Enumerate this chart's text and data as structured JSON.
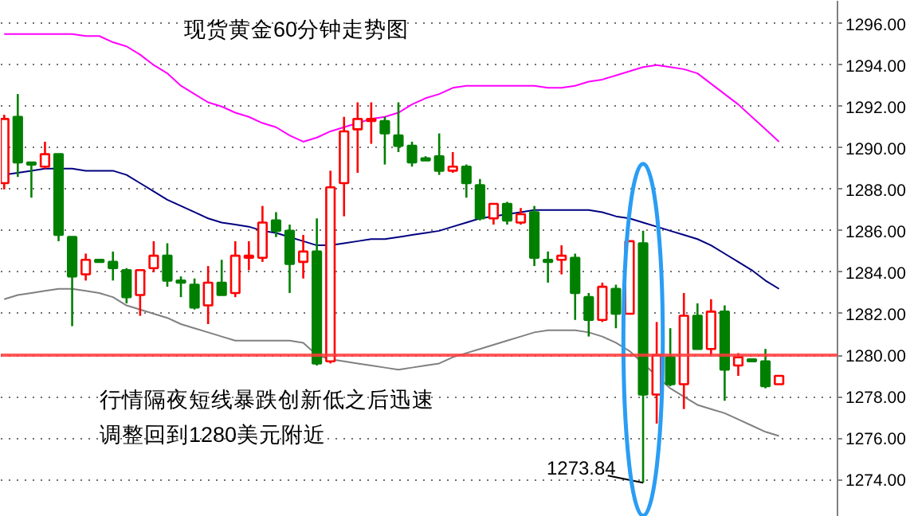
{
  "chart_data": {
    "type": "candlestick",
    "title": "现货黄金60分钟走势图",
    "annotations": [
      "行情隔夜短线暴跌创新低之后迅速",
      "调整回到1280美元附近",
      "1273.84"
    ],
    "categories": [
      null,
      null,
      null,
      null,
      null,
      null,
      null,
      null,
      null,
      null,
      null,
      null,
      null,
      null,
      null,
      null,
      null,
      null,
      null,
      null,
      null,
      null,
      null,
      null,
      null,
      null,
      null,
      null,
      null,
      null,
      null,
      null,
      null,
      null,
      null,
      null,
      null,
      null,
      null,
      null,
      null,
      null,
      null,
      null,
      null,
      null,
      null,
      null,
      null,
      null,
      null,
      null,
      null,
      null,
      null,
      null,
      null,
      null
    ],
    "ohlc": [
      [
        1288.3,
        1291.6,
        1288.0,
        1291.4
      ],
      [
        1291.5,
        1292.6,
        1288.6,
        1289.3
      ],
      [
        1289.3,
        1289.3,
        1287.6,
        1289.2
      ],
      [
        1289.1,
        1290.3,
        1289.0,
        1289.7
      ],
      [
        1289.7,
        1289.7,
        1285.5,
        1285.8
      ],
      [
        1285.7,
        1285.7,
        1281.4,
        1283.8
      ],
      [
        1283.9,
        1284.9,
        1283.6,
        1284.6
      ],
      [
        1284.6,
        1284.6,
        1284.5,
        1284.5
      ],
      [
        1284.5,
        1285.0,
        1283.6,
        1284.2
      ],
      [
        1284.1,
        1284.2,
        1282.5,
        1282.8
      ],
      [
        1282.9,
        1284.1,
        1281.9,
        1284.1
      ],
      [
        1284.2,
        1285.5,
        1284.0,
        1284.8
      ],
      [
        1284.8,
        1285.4,
        1283.3,
        1283.6
      ],
      [
        1283.6,
        1283.8,
        1282.8,
        1283.5
      ],
      [
        1283.4,
        1283.7,
        1282.2,
        1282.3
      ],
      [
        1282.4,
        1284.3,
        1281.5,
        1283.5
      ],
      [
        1283.5,
        1284.6,
        1282.9,
        1282.9
      ],
      [
        1283.0,
        1285.5,
        1282.8,
        1284.8
      ],
      [
        1284.7,
        1285.5,
        1284.1,
        1284.8
      ],
      [
        1284.7,
        1287.2,
        1284.5,
        1286.4
      ],
      [
        1286.5,
        1286.9,
        1285.7,
        1286.0
      ],
      [
        1286.0,
        1286.3,
        1283.0,
        1284.4
      ],
      [
        1284.5,
        1285.8,
        1283.7,
        1285.0
      ],
      [
        1285.0,
        1286.6,
        1279.5,
        1279.6
      ],
      [
        1279.7,
        1288.9,
        1279.6,
        1288.1
      ],
      [
        1288.3,
        1291.5,
        1286.7,
        1290.8
      ],
      [
        1290.9,
        1292.2,
        1288.8,
        1291.4
      ],
      [
        1291.3,
        1292.2,
        1290.2,
        1291.4
      ],
      [
        1291.3,
        1291.5,
        1289.2,
        1290.7
      ],
      [
        1290.6,
        1292.2,
        1289.8,
        1290.1
      ],
      [
        1290.1,
        1290.3,
        1289.1,
        1289.3
      ],
      [
        1289.5,
        1289.6,
        1289.4,
        1289.4
      ],
      [
        1289.6,
        1290.7,
        1288.7,
        1288.9
      ],
      [
        1288.9,
        1289.8,
        1288.8,
        1289.1
      ],
      [
        1289.1,
        1289.2,
        1287.6,
        1288.3
      ],
      [
        1288.2,
        1288.5,
        1286.5,
        1286.6
      ],
      [
        1286.6,
        1287.3,
        1286.3,
        1287.3
      ],
      [
        1287.3,
        1287.4,
        1286.3,
        1286.5
      ],
      [
        1286.4,
        1287.1,
        1286.3,
        1286.8
      ],
      [
        1286.9,
        1287.2,
        1284.3,
        1284.7
      ],
      [
        1284.6,
        1285.0,
        1283.5,
        1284.5
      ],
      [
        1284.6,
        1285.3,
        1283.9,
        1284.8
      ],
      [
        1284.7,
        1284.9,
        1281.7,
        1283.0
      ],
      [
        1282.8,
        1283.0,
        1280.9,
        1281.7
      ],
      [
        1281.7,
        1283.5,
        1281.6,
        1283.3
      ],
      [
        1283.2,
        1283.4,
        1281.3,
        1282.0
      ],
      [
        1282.0,
        1285.5,
        1282.0,
        1285.5
      ],
      [
        1285.4,
        1286.0,
        1273.84,
        1278.1
      ],
      [
        1278.1,
        1281.6,
        1276.7,
        1280.0
      ],
      [
        1279.9,
        1281.3,
        1278.5,
        1278.6
      ],
      [
        1278.6,
        1283.0,
        1277.4,
        1281.9
      ],
      [
        1281.9,
        1282.5,
        1280.3,
        1280.3
      ],
      [
        1280.3,
        1282.7,
        1280.0,
        1282.1
      ],
      [
        1282.1,
        1282.4,
        1277.8,
        1279.3
      ],
      [
        1279.5,
        1280.1,
        1279.0,
        1279.9
      ],
      [
        1279.8,
        1279.8,
        1279.7,
        1279.7
      ],
      [
        1279.7,
        1280.3,
        1278.4,
        1278.5
      ],
      [
        1278.6,
        1279.0,
        1278.6,
        1279.0
      ]
    ],
    "colors": [
      "#ff0000",
      "#008000",
      "#008000",
      "#ff0000",
      "#008000",
      "#008000",
      "#ff0000",
      "#008000",
      "#008000",
      "#008000",
      "#ff0000",
      "#ff0000",
      "#008000",
      "#008000",
      "#008000",
      "#ff0000",
      "#008000",
      "#ff0000",
      "#ff0000",
      "#ff0000",
      "#008000",
      "#008000",
      "#ff0000",
      "#008000",
      "#ff0000",
      "#ff0000",
      "#ff0000",
      "#ff0000",
      "#008000",
      "#008000",
      "#008000",
      "#008000",
      "#008000",
      "#ff0000",
      "#008000",
      "#008000",
      "#ff0000",
      "#008000",
      "#ff0000",
      "#008000",
      "#008000",
      "#ff0000",
      "#008000",
      "#008000",
      "#ff0000",
      "#008000",
      "#ff0000",
      "#008000",
      "#ff0000",
      "#008000",
      "#ff0000",
      "#008000",
      "#ff0000",
      "#008000",
      "#ff0000",
      "#008000",
      "#008000",
      "#ff0000"
    ],
    "series": [
      {
        "type": "line",
        "color": "#ff00ff",
        "values": [
          1295.5,
          1295.5,
          1295.5,
          1295.5,
          1295.5,
          1295.5,
          1295.4,
          1295.4,
          1295.1,
          1294.9,
          1294.5,
          1294.0,
          1293.6,
          1293.0,
          1292.6,
          1292.2,
          1292.0,
          1291.7,
          1291.5,
          1291.2,
          1291.0,
          1290.6,
          1290.3,
          1290.5,
          1290.8,
          1291.0,
          1291.2,
          1291.4,
          1291.5,
          1291.7,
          1292.1,
          1292.4,
          1292.6,
          1292.9,
          1293.0,
          1293.0,
          1293.0,
          1293.0,
          1293.0,
          1293.0,
          1292.9,
          1292.9,
          1293.0,
          1293.2,
          1293.3,
          1293.5,
          1293.7,
          1293.9,
          1294.0,
          1293.9,
          1293.8,
          1293.6,
          1293.1,
          1292.6,
          1292.1,
          1291.5,
          1290.9,
          1290.3
        ]
      },
      {
        "type": "line",
        "color": "#000080",
        "values": [
          1288.7,
          1288.8,
          1288.9,
          1289.0,
          1289.0,
          1289.0,
          1288.9,
          1288.9,
          1288.9,
          1288.7,
          1288.3,
          1287.9,
          1287.5,
          1287.2,
          1286.9,
          1286.6,
          1286.4,
          1286.3,
          1286.2,
          1286.0,
          1285.9,
          1285.7,
          1285.5,
          1285.3,
          1285.3,
          1285.4,
          1285.5,
          1285.6,
          1285.6,
          1285.7,
          1285.8,
          1285.9,
          1286.0,
          1286.2,
          1286.4,
          1286.6,
          1286.7,
          1286.8,
          1286.9,
          1287.0,
          1287.0,
          1287.0,
          1287.0,
          1287.0,
          1286.9,
          1286.7,
          1286.6,
          1286.4,
          1286.2,
          1286.0,
          1285.8,
          1285.6,
          1285.3,
          1284.9,
          1284.5,
          1284.1,
          1283.6,
          1283.2
        ]
      },
      {
        "type": "line",
        "color": "#808080",
        "values": [
          1282.7,
          1282.9,
          1283.0,
          1283.1,
          1283.2,
          1283.2,
          1283.1,
          1283.0,
          1282.8,
          1282.4,
          1282.2,
          1282.0,
          1281.8,
          1281.5,
          1281.3,
          1281.1,
          1280.9,
          1280.7,
          1280.7,
          1280.7,
          1280.7,
          1280.7,
          1280.6,
          1280.0,
          1279.8,
          1279.7,
          1279.6,
          1279.5,
          1279.4,
          1279.3,
          1279.4,
          1279.5,
          1279.6,
          1279.9,
          1280.1,
          1280.3,
          1280.5,
          1280.7,
          1280.9,
          1281.1,
          1281.2,
          1281.2,
          1281.2,
          1281.1,
          1280.9,
          1280.6,
          1280.2,
          1279.6,
          1279.0,
          1278.4,
          1278.0,
          1277.6,
          1277.4,
          1277.2,
          1276.9,
          1276.6,
          1276.3,
          1276.1
        ]
      }
    ],
    "ylim": [
      1272.2,
      1297.1
    ],
    "yticks": [
      {
        "value": 1274,
        "label": "1274.00"
      },
      {
        "value": 1276,
        "label": "1276.00"
      },
      {
        "value": 1278,
        "label": "1278.00"
      },
      {
        "value": 1280,
        "label": "1280.00"
      },
      {
        "value": 1282,
        "label": "1282.00"
      },
      {
        "value": 1284,
        "label": "1284.00"
      },
      {
        "value": 1286,
        "label": "1286.00"
      },
      {
        "value": 1288,
        "label": "1288.00"
      },
      {
        "value": 1290,
        "label": "1290.00"
      },
      {
        "value": 1292,
        "label": "1292.00"
      },
      {
        "value": 1294,
        "label": "1294.00"
      },
      {
        "value": 1296,
        "label": "1296.00"
      }
    ],
    "grid": "y",
    "ref_lines": [
      {
        "axis": "y",
        "value": 1280,
        "color": "#ff3b3b"
      }
    ]
  }
}
